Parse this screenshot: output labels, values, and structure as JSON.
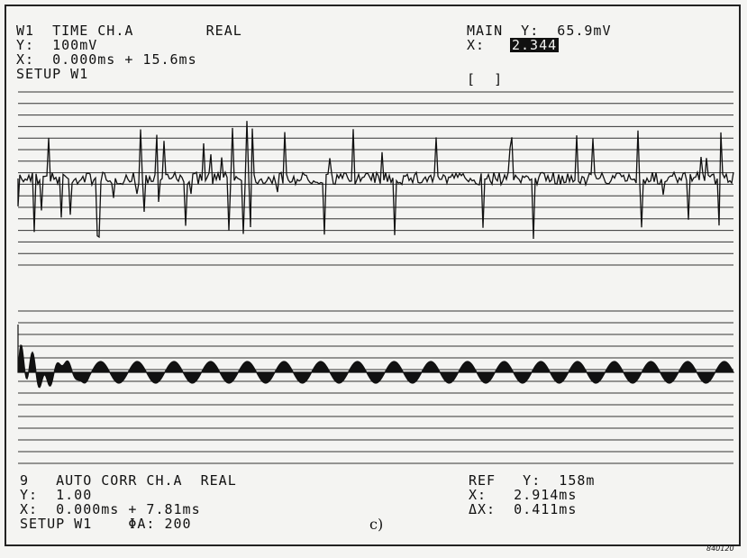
{
  "top": {
    "line1": "W1  TIME CH.A        REAL",
    "line2": "Y:  100mV",
    "line3": "X:  0.000ms + 15.6ms",
    "line4": "SETUP W1",
    "cursor_line1": "MAIN  Y:  65.9mV",
    "cursor_x_label": "X:",
    "cursor_x_value": "2.344",
    "bracket": "[  ]"
  },
  "bottom": {
    "line1": "9   AUTO CORR CH.A  REAL",
    "line2": "Y:  1.00",
    "line3": "X:  0.000ms + 7.81ms",
    "line4": "SETUP W1    ΦA: 200",
    "ref_line1": "REF   Y:  158m",
    "ref_line2": "X:   2.914ms",
    "ref_line3": "ΔX:  0.411ms"
  },
  "caption": "c)",
  "figure_number": "840120",
  "chart_data": [
    {
      "type": "line",
      "title": "W1 TIME CH.A REAL",
      "ylabel": "100mV",
      "x_range_ms": [
        0,
        15.6
      ],
      "grid": "horizontal",
      "description": "noisy time signal with random spikes"
    },
    {
      "type": "line",
      "title": "AUTO CORR CH.A REAL",
      "ylabel": "1.00",
      "x_range_ms": [
        0,
        7.81
      ],
      "grid": "horizontal",
      "description": "autocorrelation: decaying transient followed by periodic oscillation, ~19.5 cycles"
    }
  ]
}
